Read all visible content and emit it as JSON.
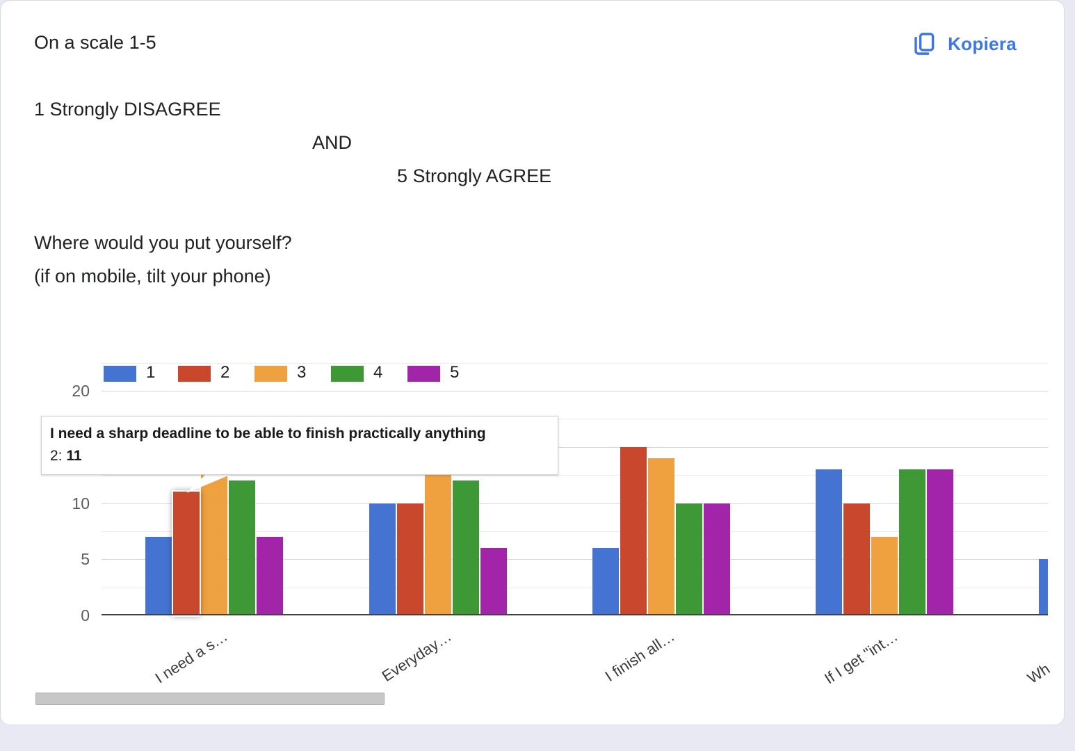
{
  "header": {
    "line1": "On a scale 1-5",
    "line2": "1 Strongly DISAGREE",
    "line3": "AND",
    "line4": "5 Strongly AGREE",
    "line5": "Where would you put yourself?",
    "line6": "(if on mobile, tilt your phone)"
  },
  "copy_button": {
    "label": "Kopiera",
    "color": "#3d76e8"
  },
  "tooltip": {
    "title": "I need a sharp deadline to be able to finish practically anything",
    "series_label": "2: ",
    "value": "11"
  },
  "chart_data": {
    "type": "bar",
    "title": "",
    "xlabel": "",
    "ylabel": "",
    "categories": [
      "I need a s…",
      "Everyday…",
      "I finish all…",
      "If I get \"int…",
      "Wh"
    ],
    "series": [
      {
        "name": "1",
        "color": "#4573d2",
        "values": [
          7,
          10,
          6,
          13,
          5
        ]
      },
      {
        "name": "2",
        "color": "#c9472c",
        "values": [
          11,
          10,
          15,
          10,
          null
        ]
      },
      {
        "name": "3",
        "color": "#efa03f",
        "values": [
          13,
          13,
          14,
          7,
          null
        ]
      },
      {
        "name": "4",
        "color": "#3f9836",
        "values": [
          12,
          12,
          10,
          13,
          null
        ]
      },
      {
        "name": "5",
        "color": "#a224a8",
        "values": [
          7,
          6,
          10,
          13,
          null
        ]
      }
    ],
    "ylim": [
      0,
      22.5
    ],
    "yticks": [
      0,
      5,
      10,
      15,
      20
    ],
    "gridline_step": 2.5,
    "grid": true,
    "legend_position": "top",
    "highlight": {
      "category_index": 0,
      "series_index": 1
    }
  }
}
